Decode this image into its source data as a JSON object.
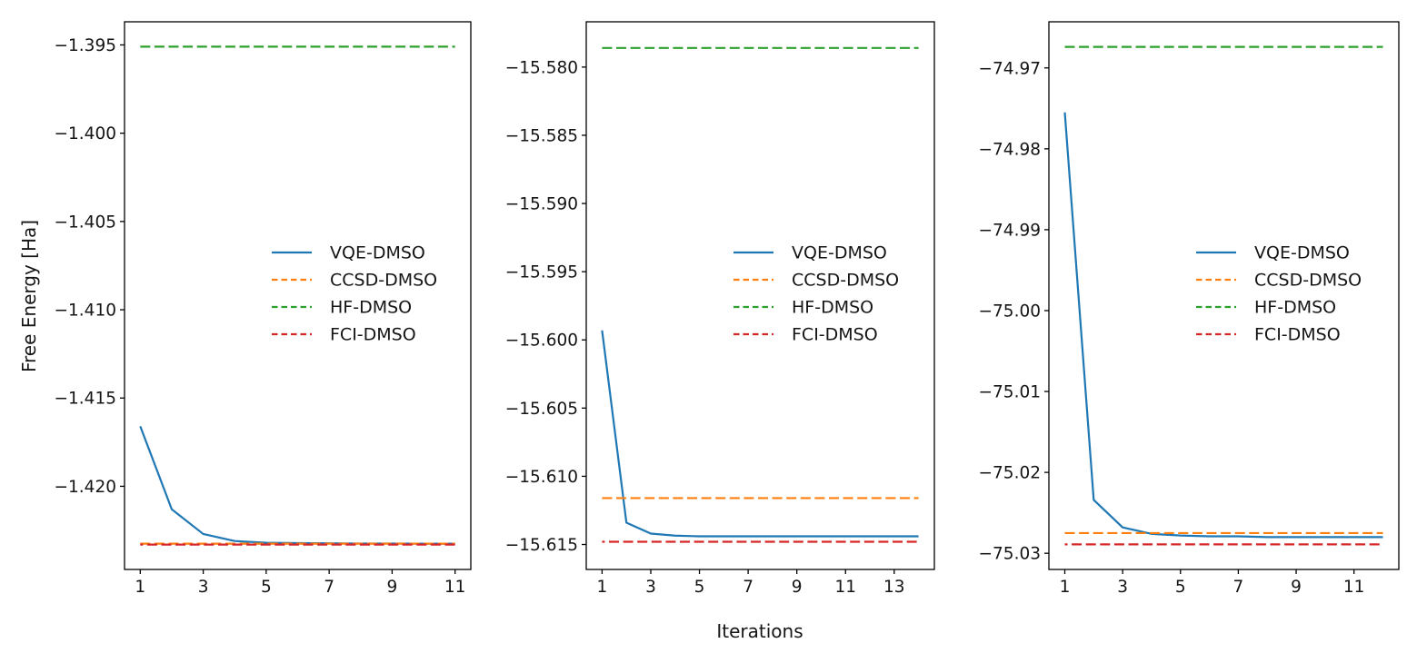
{
  "figure": {
    "ylabel": "Free Energy [Ha]",
    "xlabel": "Iterations",
    "background": "#ffffff",
    "text_color": "#151515",
    "colors": {
      "vqe": "#1f77b4",
      "ccsd": "#ff7f0e",
      "hf": "#2ca02c",
      "fci": "#d62728"
    },
    "legend_labels": [
      "VQE-DMSO",
      "CCSD-DMSO",
      "HF-DMSO",
      "FCI-DMSO"
    ],
    "legend_position": "center right",
    "grid": "off"
  },
  "chart_data": [
    {
      "type": "line",
      "title": "",
      "xlabel": "Iterations",
      "ylabel": "Free Energy [Ha]",
      "x": [
        1,
        2,
        3,
        4,
        5,
        6,
        7,
        8,
        9,
        10,
        11
      ],
      "series": [
        {
          "name": "VQE-DMSO",
          "style": "solid",
          "color_key": "vqe",
          "values": [
            -1.4166,
            -1.4213,
            -1.4227,
            -1.4231,
            -1.4232,
            -1.42322,
            -1.42323,
            -1.42324,
            -1.42324,
            -1.42325,
            -1.42325
          ]
        },
        {
          "name": "CCSD-DMSO",
          "style": "dashed",
          "color_key": "ccsd",
          "constant": -1.42325
        },
        {
          "name": "HF-DMSO",
          "style": "dashed",
          "color_key": "hf",
          "constant": -1.3951
        },
        {
          "name": "FCI-DMSO",
          "style": "dashed",
          "color_key": "fci",
          "constant": -1.4233
        }
      ],
      "xlim": [
        0.5,
        11.5
      ],
      "ylim": [
        -1.42471,
        -1.39369
      ],
      "xticks": {
        "values": [
          1,
          3,
          5,
          7,
          9,
          11
        ],
        "labels": [
          "1",
          "3",
          "5",
          "7",
          "9",
          "11"
        ]
      },
      "yticks": {
        "values": [
          -1.395,
          -1.4,
          -1.405,
          -1.41,
          -1.415,
          -1.42
        ],
        "labels": [
          "−1.395",
          "−1.400",
          "−1.405",
          "−1.410",
          "−1.415",
          "−1.420"
        ]
      }
    },
    {
      "type": "line",
      "title": "",
      "xlabel": "Iterations",
      "ylabel": "Free Energy [Ha]",
      "x": [
        1,
        2,
        3,
        4,
        5,
        6,
        7,
        8,
        9,
        10,
        11,
        12,
        13,
        14
      ],
      "series": [
        {
          "name": "VQE-DMSO",
          "style": "solid",
          "color_key": "vqe",
          "values": [
            -15.5993,
            -15.6134,
            -15.6142,
            -15.61435,
            -15.6144,
            -15.6144,
            -15.6144,
            -15.6144,
            -15.6144,
            -15.6144,
            -15.6144,
            -15.6144,
            -15.6144,
            -15.6144
          ]
        },
        {
          "name": "CCSD-DMSO",
          "style": "dashed",
          "color_key": "ccsd",
          "constant": -15.6116
        },
        {
          "name": "HF-DMSO",
          "style": "dashed",
          "color_key": "hf",
          "constant": -15.5786
        },
        {
          "name": "FCI-DMSO",
          "style": "dashed",
          "color_key": "fci",
          "constant": -15.6148
        }
      ],
      "xlim": [
        0.35,
        14.65
      ],
      "ylim": [
        -15.61683,
        -15.57668
      ],
      "xticks": {
        "values": [
          1,
          3,
          5,
          7,
          9,
          11,
          13
        ],
        "labels": [
          "1",
          "3",
          "5",
          "7",
          "9",
          "11",
          "13"
        ]
      },
      "yticks": {
        "values": [
          -15.58,
          -15.585,
          -15.59,
          -15.595,
          -15.6,
          -15.605,
          -15.61,
          -15.615
        ],
        "labels": [
          "−15.580",
          "−15.585",
          "−15.590",
          "−15.595",
          "−15.600",
          "−15.605",
          "−15.610",
          "−15.615"
        ]
      }
    },
    {
      "type": "line",
      "title": "",
      "xlabel": "Iterations",
      "ylabel": "Free Energy [Ha]",
      "x": [
        1,
        2,
        3,
        4,
        5,
        6,
        7,
        8,
        9,
        10,
        11,
        12
      ],
      "series": [
        {
          "name": "VQE-DMSO",
          "style": "solid",
          "color_key": "vqe",
          "values": [
            -74.9755,
            -75.0234,
            -75.0268,
            -75.0276,
            -75.0278,
            -75.0279,
            -75.0279,
            -75.028,
            -75.028,
            -75.028,
            -75.028,
            -75.028
          ]
        },
        {
          "name": "CCSD-DMSO",
          "style": "dashed",
          "color_key": "ccsd",
          "constant": -75.0275
        },
        {
          "name": "HF-DMSO",
          "style": "dashed",
          "color_key": "hf",
          "constant": -74.9674
        },
        {
          "name": "FCI-DMSO",
          "style": "dashed",
          "color_key": "fci",
          "constant": -75.0289
        }
      ],
      "xlim": [
        0.45,
        12.55
      ],
      "ylim": [
        -75.032,
        -74.9643
      ],
      "xticks": {
        "values": [
          1,
          3,
          5,
          7,
          9,
          11
        ],
        "labels": [
          "1",
          "3",
          "5",
          "7",
          "9",
          "11"
        ]
      },
      "yticks": {
        "values": [
          -74.97,
          -74.98,
          -74.99,
          -75.0,
          -75.01,
          -75.02,
          -75.03
        ],
        "labels": [
          "−74.97",
          "−74.98",
          "−74.99",
          "−75.00",
          "−75.01",
          "−75.02",
          "−75.03"
        ]
      }
    }
  ]
}
